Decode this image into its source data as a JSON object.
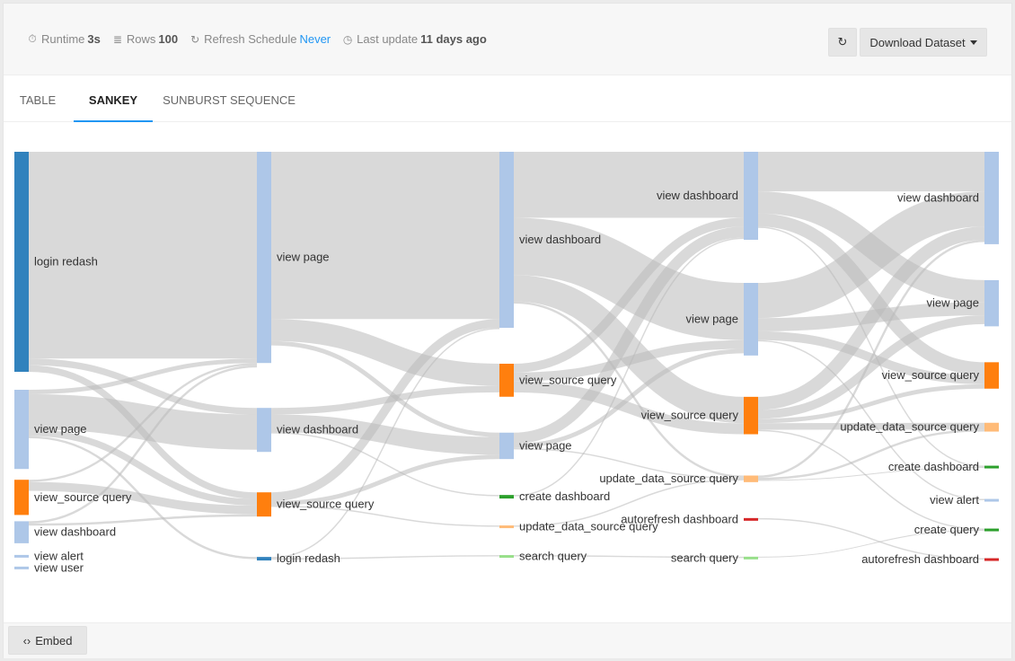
{
  "meta": {
    "runtime_label": "Runtime",
    "runtime_value": "3s",
    "rows_label": "Rows",
    "rows_value": "100",
    "refresh_label": "Refresh Schedule",
    "refresh_value": "Never",
    "update_label": "Last update",
    "update_value": "11 days ago",
    "icons": [
      "stopwatch-icon",
      "table-icon",
      "refresh-icon",
      "clock-icon"
    ]
  },
  "actions": {
    "refresh_icon": "refresh-icon",
    "download_label": "Download Dataset",
    "download_icon": "caret-down-icon"
  },
  "tabs": [
    {
      "label": "TABLE",
      "active": false
    },
    {
      "label": "SANKEY",
      "active": true
    },
    {
      "label": "SUNBURST SEQUENCE",
      "active": false
    }
  ],
  "footer": {
    "embed_label": "Embed",
    "embed_icon": "code-icon"
  },
  "colors": {
    "accent": "#2196f3",
    "link_gray": "#b9b9b9",
    "login_redash": "#3182bd",
    "view_page": "#aec7e8",
    "view_dashboard": "#aec7e8",
    "view_source_query": "#ff7f0e",
    "update_data_source_query": "#ffbb78",
    "create_dashboard": "#2ca02c",
    "create_query": "#2ca02c",
    "view_alert": "#aec7e8",
    "view_user": "#aec7e8",
    "autorefresh_dashboard": "#d62728",
    "search_query": "#98df8a"
  },
  "chart_data": {
    "type": "sankey",
    "stages": [
      {
        "index": 1,
        "nodes": [
          {
            "id": "s1_login",
            "label": "login redash",
            "color": "login_redash",
            "value": 50
          },
          {
            "id": "s1_page",
            "label": "view page",
            "color": "view_page",
            "value": 18
          },
          {
            "id": "s1_vsq",
            "label": "view_source query",
            "color": "view_source_query",
            "value": 8
          },
          {
            "id": "s1_dash",
            "label": "view dashboard",
            "color": "view_dashboard",
            "value": 5
          },
          {
            "id": "s1_alert",
            "label": "view alert",
            "color": "view_alert",
            "value": 0.3
          },
          {
            "id": "s1_user",
            "label": "view user",
            "color": "view_user",
            "value": 0.3
          }
        ]
      },
      {
        "index": 2,
        "nodes": [
          {
            "id": "s2_page",
            "label": "view page",
            "color": "view_page",
            "value": 48
          },
          {
            "id": "s2_dash",
            "label": "view dashboard",
            "color": "view_dashboard",
            "value": 10
          },
          {
            "id": "s2_vsq",
            "label": "view_source query",
            "color": "view_source_query",
            "value": 5.5
          },
          {
            "id": "s2_login",
            "label": "login redash",
            "color": "login_redash",
            "value": 0.8
          }
        ]
      },
      {
        "index": 3,
        "nodes": [
          {
            "id": "s3_dash",
            "label": "view dashboard",
            "color": "view_dashboard",
            "value": 40
          },
          {
            "id": "s3_vsq",
            "label": "view_source query",
            "color": "view_source_query",
            "value": 7.5
          },
          {
            "id": "s3_page",
            "label": "view page",
            "color": "view_page",
            "value": 6
          },
          {
            "id": "s3_cdash",
            "label": "create dashboard",
            "color": "create_dashboard",
            "value": 0.8
          },
          {
            "id": "s3_udsq",
            "label": "update_data_source query",
            "color": "update_data_source_query",
            "value": 0.3
          },
          {
            "id": "s3_search",
            "label": "search query",
            "color": "search_query",
            "value": 0.3
          }
        ]
      },
      {
        "index": 4,
        "nodes": [
          {
            "id": "s4_dash",
            "label": "view dashboard",
            "color": "view_dashboard",
            "value": 20
          },
          {
            "id": "s4_page",
            "label": "view page",
            "color": "view_page",
            "value": 16.5
          },
          {
            "id": "s4_vsq",
            "label": "view_source query",
            "color": "view_source_query",
            "value": 8.5
          },
          {
            "id": "s4_udsq",
            "label": "update_data_source query",
            "color": "update_data_source_query",
            "value": 1.5
          },
          {
            "id": "s4_auto",
            "label": "autorefresh dashboard",
            "color": "autorefresh_dashboard",
            "value": 0.3
          },
          {
            "id": "s4_search",
            "label": "search query",
            "color": "search_query",
            "value": 0.3
          }
        ]
      },
      {
        "index": 5,
        "nodes": [
          {
            "id": "s5_dash",
            "label": "view dashboard",
            "color": "view_dashboard",
            "value": 21
          },
          {
            "id": "s5_page",
            "label": "view page",
            "color": "view_page",
            "value": 10.5
          },
          {
            "id": "s5_vsq",
            "label": "view_source query",
            "color": "view_source_query",
            "value": 6
          },
          {
            "id": "s5_udsq",
            "label": "update_data_source query",
            "color": "update_data_source_query",
            "value": 2
          },
          {
            "id": "s5_cdash",
            "label": "create dashboard",
            "color": "create_dashboard",
            "value": 0.5
          },
          {
            "id": "s5_alert",
            "label": "view alert",
            "color": "view_alert",
            "value": 0.3
          },
          {
            "id": "s5_cquery",
            "label": "create query",
            "color": "create_query",
            "value": 0.4
          },
          {
            "id": "s5_auto",
            "label": "autorefresh dashboard",
            "color": "autorefresh_dashboard",
            "value": 0.4
          }
        ]
      }
    ],
    "links": [
      {
        "source": "s1_login",
        "target": "s2_page",
        "value": 47
      },
      {
        "source": "s1_login",
        "target": "s2_dash",
        "value": 1.5
      },
      {
        "source": "s1_login",
        "target": "s2_vsq",
        "value": 1.5
      },
      {
        "source": "s1_page",
        "target": "s2_dash",
        "value": 8
      },
      {
        "source": "s1_page",
        "target": "s2_page",
        "value": 1
      },
      {
        "source": "s1_page",
        "target": "s2_vsq",
        "value": 1.5
      },
      {
        "source": "s1_page",
        "target": "s2_login",
        "value": 0.5
      },
      {
        "source": "s1_vsq",
        "target": "s2_vsq",
        "value": 2
      },
      {
        "source": "s1_vsq",
        "target": "s2_page",
        "value": 0.5
      },
      {
        "source": "s1_dash",
        "target": "s2_page",
        "value": 0.5
      },
      {
        "source": "s1_dash",
        "target": "s2_vsq",
        "value": 0.5
      },
      {
        "source": "s2_page",
        "target": "s3_dash",
        "value": 38
      },
      {
        "source": "s2_page",
        "target": "s3_vsq",
        "value": 5
      },
      {
        "source": "s2_page",
        "target": "s3_page",
        "value": 1
      },
      {
        "source": "s2_dash",
        "target": "s3_vsq",
        "value": 1.5
      },
      {
        "source": "s2_dash",
        "target": "s3_page",
        "value": 4
      },
      {
        "source": "s2_dash",
        "target": "s3_cdash",
        "value": 0.3
      },
      {
        "source": "s2_vsq",
        "target": "s3_dash",
        "value": 2
      },
      {
        "source": "s2_vsq",
        "target": "s3_page",
        "value": 1
      },
      {
        "source": "s2_vsq",
        "target": "s3_udsq",
        "value": 0.3
      },
      {
        "source": "s2_login",
        "target": "s3_dash",
        "value": 0.3
      },
      {
        "source": "s2_login",
        "target": "s3_search",
        "value": 0.3
      },
      {
        "source": "s3_dash",
        "target": "s4_dash",
        "value": 15
      },
      {
        "source": "s3_dash",
        "target": "s4_page",
        "value": 13
      },
      {
        "source": "s3_dash",
        "target": "s4_vsq",
        "value": 6
      },
      {
        "source": "s3_dash",
        "target": "s4_udsq",
        "value": 0.5
      },
      {
        "source": "s3_vsq",
        "target": "s4_dash",
        "value": 2
      },
      {
        "source": "s3_vsq",
        "target": "s4_page",
        "value": 2
      },
      {
        "source": "s3_vsq",
        "target": "s4_vsq",
        "value": 2.5
      },
      {
        "source": "s3_page",
        "target": "s4_dash",
        "value": 2.5
      },
      {
        "source": "s3_page",
        "target": "s4_page",
        "value": 1
      },
      {
        "source": "s3_page",
        "target": "s4_udsq",
        "value": 0.3
      },
      {
        "source": "s3_cdash",
        "target": "s4_dash",
        "value": 0.3
      },
      {
        "source": "s3_udsq",
        "target": "s4_udsq",
        "value": 0.3
      },
      {
        "source": "s3_search",
        "target": "s4_search",
        "value": 0.3
      },
      {
        "source": "s4_dash",
        "target": "s5_dash",
        "value": 9
      },
      {
        "source": "s4_dash",
        "target": "s5_page",
        "value": 5
      },
      {
        "source": "s4_dash",
        "target": "s5_vsq",
        "value": 3
      },
      {
        "source": "s4_dash",
        "target": "s5_cdash",
        "value": 0.3
      },
      {
        "source": "s4_page",
        "target": "s5_dash",
        "value": 8
      },
      {
        "source": "s4_page",
        "target": "s5_page",
        "value": 3
      },
      {
        "source": "s4_page",
        "target": "s5_vsq",
        "value": 2
      },
      {
        "source": "s4_page",
        "target": "s5_alert",
        "value": 0.3
      },
      {
        "source": "s4_vsq",
        "target": "s5_dash",
        "value": 3
      },
      {
        "source": "s4_vsq",
        "target": "s5_page",
        "value": 2
      },
      {
        "source": "s4_vsq",
        "target": "s5_vsq",
        "value": 1
      },
      {
        "source": "s4_vsq",
        "target": "s5_udsq",
        "value": 1.5
      },
      {
        "source": "s4_vsq",
        "target": "s5_cquery",
        "value": 0.3
      },
      {
        "source": "s4_udsq",
        "target": "s5_dash",
        "value": 0.5
      },
      {
        "source": "s4_udsq",
        "target": "s5_udsq",
        "value": 0.5
      },
      {
        "source": "s4_udsq",
        "target": "s5_cdash",
        "value": 0.2
      },
      {
        "source": "s4_auto",
        "target": "s5_auto",
        "value": 0.3
      },
      {
        "source": "s4_search",
        "target": "s5_cquery",
        "value": 0.2
      }
    ]
  }
}
